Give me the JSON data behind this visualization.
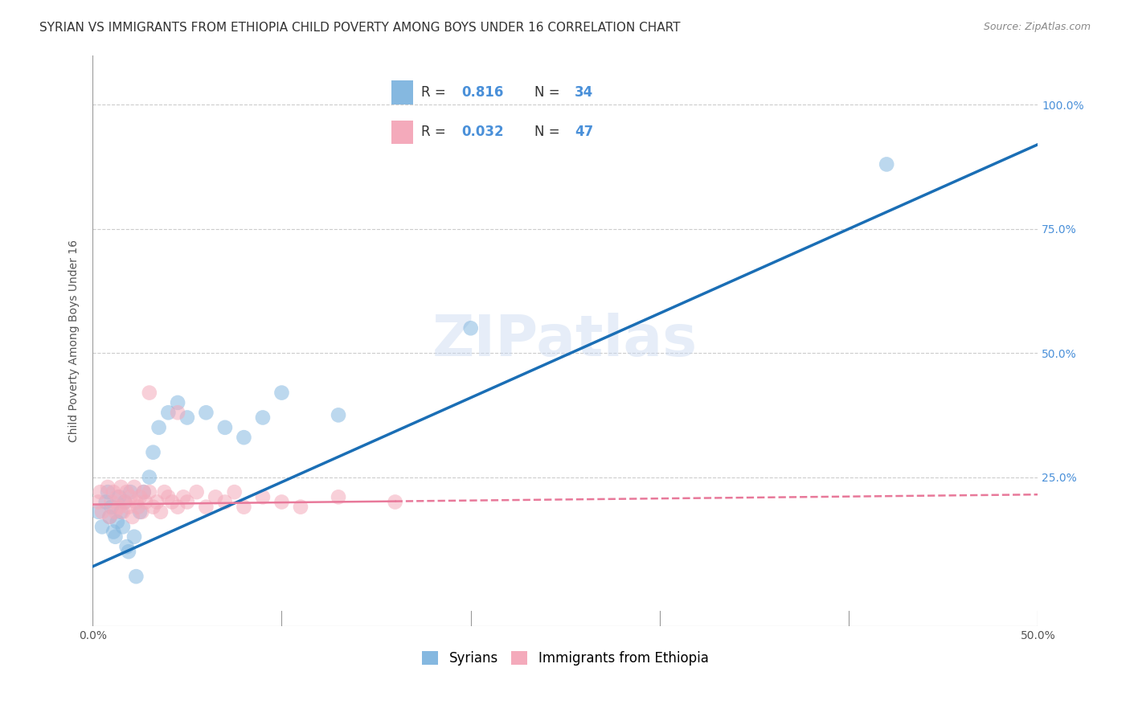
{
  "title": "SYRIAN VS IMMIGRANTS FROM ETHIOPIA CHILD POVERTY AMONG BOYS UNDER 16 CORRELATION CHART",
  "source": "Source: ZipAtlas.com",
  "ylabel": "Child Poverty Among Boys Under 16",
  "watermark": "ZIPatlas",
  "xlim": [
    0.0,
    0.5
  ],
  "ylim": [
    -0.05,
    1.1
  ],
  "ytick_vals": [
    0.25,
    0.5,
    0.75,
    1.0
  ],
  "ytick_labels": [
    "25.0%",
    "50.0%",
    "75.0%",
    "100.0%"
  ],
  "xtick_left_label": "0.0%",
  "xtick_right_label": "50.0%",
  "blue_line_color": "#1a6eb5",
  "pink_line_color": "#e8799a",
  "scatter_blue": "#85b8e0",
  "scatter_pink": "#f4aabb",
  "background_color": "#ffffff",
  "grid_color": "#cccccc",
  "title_color": "#333333",
  "right_tick_color": "#4a90d9",
  "legend_box_color": "#4a90d9",
  "R_blue": 0.816,
  "N_blue": 34,
  "R_pink": 0.032,
  "N_pink": 47,
  "title_fontsize": 11,
  "source_fontsize": 9,
  "axis_label_fontsize": 10,
  "tick_fontsize": 10,
  "legend_fontsize": 12,
  "watermark_fontsize": 52,
  "scatter_size": 180,
  "scatter_alpha": 0.55
}
